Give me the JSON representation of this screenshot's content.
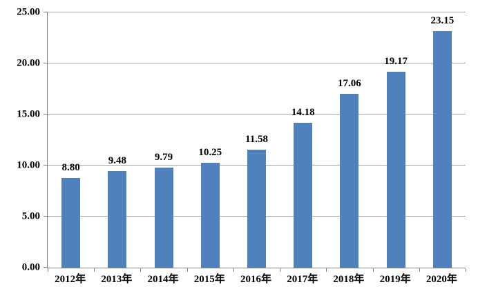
{
  "chart_data": {
    "type": "bar",
    "title": "",
    "xlabel": "",
    "ylabel": "",
    "categories": [
      "2012年",
      "2013年",
      "2014年",
      "2015年",
      "2016年",
      "2017年",
      "2018年",
      "2019年",
      "2020年"
    ],
    "values": [
      8.8,
      9.48,
      9.79,
      10.25,
      11.58,
      14.18,
      17.06,
      19.17,
      23.15
    ],
    "value_labels": [
      "8.80",
      "9.48",
      "9.79",
      "10.25",
      "11.58",
      "14.18",
      "17.06",
      "19.17",
      "23.15"
    ],
    "ylim": [
      0,
      25
    ],
    "ytick_step": 5,
    "ytick_labels": [
      "0.00",
      "5.00",
      "10.00",
      "15.00",
      "20.00",
      "25.00"
    ],
    "grid": true,
    "legend": false,
    "bar_color": "#4f81bd",
    "gridline_color": "#a6a6a6",
    "axis_color": "#7f7f7f",
    "text_color": "#000000"
  }
}
